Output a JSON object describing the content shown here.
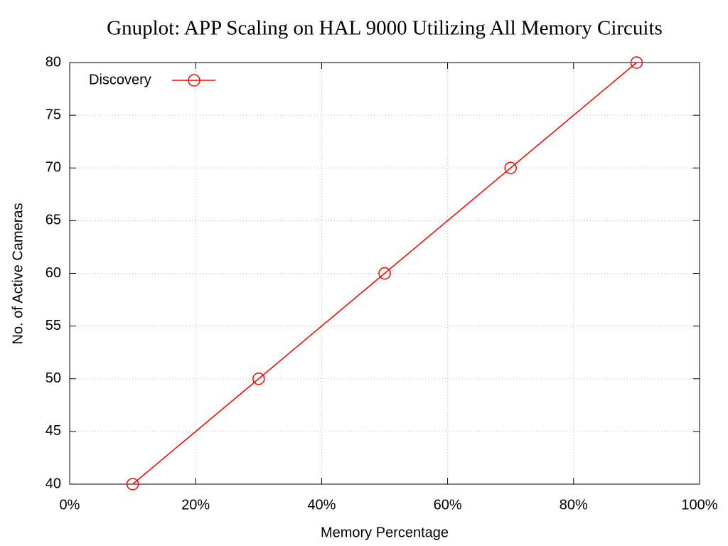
{
  "chart_data": {
    "type": "line",
    "title": "Gnuplot: APP Scaling on HAL 9000 Utilizing All Memory Circuits",
    "x_label": "Memory Percentage",
    "y_label": "No. of Active Cameras",
    "x": [
      10,
      30,
      50,
      70,
      90
    ],
    "series": [
      {
        "name": "Discovery",
        "color": "#ff0000",
        "values": [
          40,
          50,
          60,
          70,
          80
        ]
      }
    ],
    "xlim": [
      0,
      100
    ],
    "xticks": [
      {
        "value": 0,
        "label": "0%"
      },
      {
        "value": 20,
        "label": "20%"
      },
      {
        "value": 40,
        "label": "40%"
      },
      {
        "value": 60,
        "label": "60%"
      },
      {
        "value": 80,
        "label": "80%"
      },
      {
        "value": 100,
        "label": "100%"
      }
    ],
    "ylim": [
      40,
      80
    ],
    "yticks": [
      40,
      45,
      50,
      55,
      60,
      65,
      70,
      75,
      80
    ],
    "grid": true,
    "legend": "top left"
  }
}
